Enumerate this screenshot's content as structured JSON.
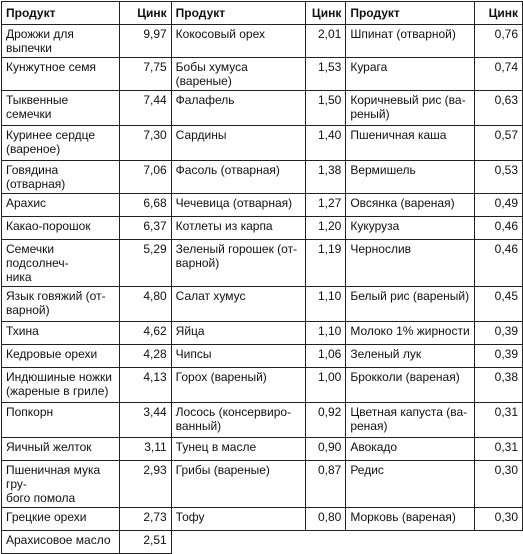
{
  "headers": [
    "Продукт",
    "Цинк",
    "Продукт",
    "Цинк",
    "Продукт",
    "Цинк"
  ],
  "rows": [
    [
      "Дрожжи для выпечки",
      "9,97",
      "Кокосовый орех",
      "2,01",
      "Шпинат (отварной)",
      "0,76"
    ],
    [
      "Кунжутное семя",
      "7,75",
      "Бобы хумуса (вареные)",
      "1,53",
      "Курага",
      "0,74"
    ],
    [
      "Тыквенные семечки",
      "7,44",
      "Фалафель",
      "1,50",
      "Коричневый рис (ва-\nреный)",
      "0,63"
    ],
    [
      "Куринее сердце\n(вареное)",
      "7,30",
      "Сардины",
      "1,40",
      "Пшеничная каша",
      "0,57"
    ],
    [
      "Говядина (отварная)",
      "7,06",
      "Фасоль (отварная)",
      "1,38",
      "Вермишель",
      "0,53"
    ],
    [
      "Арахис",
      "6,68",
      "Чечевица (отварная)",
      "1,27",
      "Овсянка (вареная)",
      "0,49"
    ],
    [
      "Какао-порошок",
      "6,37",
      "Котлеты из карпа",
      "1,20",
      "Кукуруза",
      "0,46"
    ],
    [
      "Семечки подсолнеч-\nника",
      "5,29",
      "Зеленый горошек (от-\nварной)",
      "1,19",
      "Чернослив",
      "0,46"
    ],
    [
      "Язык говяжий (от-\nварной)",
      "4,80",
      "Салат хумус",
      "1,10",
      "Белый рис (вареный)",
      "0,45"
    ],
    [
      "Тхина",
      "4,62",
      "Яйца",
      "1,10",
      "Молоко 1% жирности",
      "0,39"
    ],
    [
      "Кедровые орехи",
      "4,28",
      "Чипсы",
      "1,06",
      "Зеленый лук",
      "0,39"
    ],
    [
      "Индюшиные ножки\n(жареные в гриле)",
      "4,13",
      "Горох (вареный)",
      "1,00",
      "Брокколи (вареная)",
      "0,38"
    ],
    [
      "Попкорн",
      "3,44",
      "Лосось (консервиро-\nванный)",
      "0,92",
      "Цветная капуста (ва-\nреная)",
      "0,31"
    ],
    [
      "Яичный желток",
      "3,11",
      "Тунец в масле",
      "0,90",
      "Авокадо",
      "0,31"
    ],
    [
      "Пшеничная мука гру-\nбого помола",
      "2,93",
      "Грибы (вареные)",
      "0,87",
      "Редис",
      "0,30"
    ],
    [
      "Грецкие орехи",
      "2,73",
      "Тофу",
      "0,80",
      "Морковь (вареная)",
      "0,30"
    ],
    [
      "Арахисовое масло",
      "2,51",
      "",
      "",
      "",
      ""
    ]
  ]
}
